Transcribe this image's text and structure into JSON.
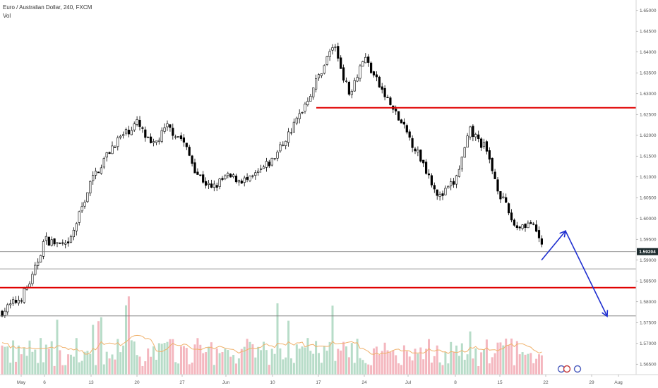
{
  "header": {
    "title": "Euro / Australian Dollar, 240, FXCM",
    "volume_label": "Vol"
  },
  "price_tag": "1.59204",
  "chart_data": {
    "type": "candlestick",
    "symbol": "EURAUD",
    "timeframe": "240",
    "ylim": [
      1.5625,
      1.6525
    ],
    "y_ticks": [
      "1.65000",
      "1.64500",
      "1.64000",
      "1.63500",
      "1.63000",
      "1.62500",
      "1.62000",
      "1.61500",
      "1.61000",
      "1.60500",
      "1.60000",
      "1.59500",
      "1.59000",
      "1.58500",
      "1.58000",
      "1.57500",
      "1.57000",
      "1.56500"
    ],
    "x_ticks": [
      "May",
      "6",
      "13",
      "20",
      "27",
      "Jun",
      "10",
      "17",
      "24",
      "Jul",
      "8",
      "15",
      "22",
      "29",
      "Aug"
    ],
    "price_path": [
      [
        "May",
        1.581
      ],
      [
        "May",
        1.586
      ],
      [
        "6",
        1.595
      ],
      [
        "6",
        1.593
      ],
      [
        "13",
        1.609
      ],
      [
        "13",
        1.618
      ],
      [
        "20",
        1.623
      ],
      [
        "20",
        1.617
      ],
      [
        "20",
        1.622
      ],
      [
        "27",
        1.619
      ],
      [
        "27",
        1.611
      ],
      [
        "27",
        1.607
      ],
      [
        "Jun",
        1.61
      ],
      [
        "Jun",
        1.609
      ],
      [
        "10",
        1.614
      ],
      [
        "10",
        1.623
      ],
      [
        "17",
        1.634
      ],
      [
        "17",
        1.642
      ],
      [
        "17",
        1.63
      ],
      [
        "24",
        1.639
      ],
      [
        "24",
        1.632
      ],
      [
        "24",
        1.626
      ],
      [
        "Jul",
        1.62
      ],
      [
        "Jul",
        1.613
      ],
      [
        "Jul",
        1.605
      ],
      [
        "8",
        1.609
      ],
      [
        "8",
        1.621
      ],
      [
        "8",
        1.617
      ],
      [
        "15",
        1.606
      ],
      [
        "15",
        1.598
      ],
      [
        "15",
        1.599
      ],
      [
        "22",
        1.592
      ]
    ],
    "current_price": 1.59204,
    "horizontal_lines": [
      {
        "price": 1.6266,
        "color": "#e00000",
        "weight": "thick",
        "from": "17"
      },
      {
        "price": 1.5834,
        "color": "#e00000",
        "weight": "thick",
        "from": "May"
      },
      {
        "price": 1.59204,
        "color": "#777777",
        "weight": "thin",
        "from": "May"
      },
      {
        "price": 1.5879,
        "color": "#777777",
        "weight": "thin",
        "from": "May"
      },
      {
        "price": 1.5766,
        "color": "#777777",
        "weight": "thin",
        "from": "May"
      }
    ],
    "projection": {
      "color": "#1f2fd0",
      "points": [
        [
          "22",
          1.59
        ],
        [
          "29",
          1.597
        ],
        [
          "Aug",
          1.5765
        ]
      ]
    },
    "colors": {
      "up": "#ffffff",
      "down": "#000000",
      "wick": "#000000",
      "vol_up": "#b7dcc8",
      "vol_down": "#f4b7bf",
      "vol_ma": "#f0b16b",
      "price_tag_bg": "#1d2b2e",
      "price_tag_fg": "#ffffff"
    }
  }
}
